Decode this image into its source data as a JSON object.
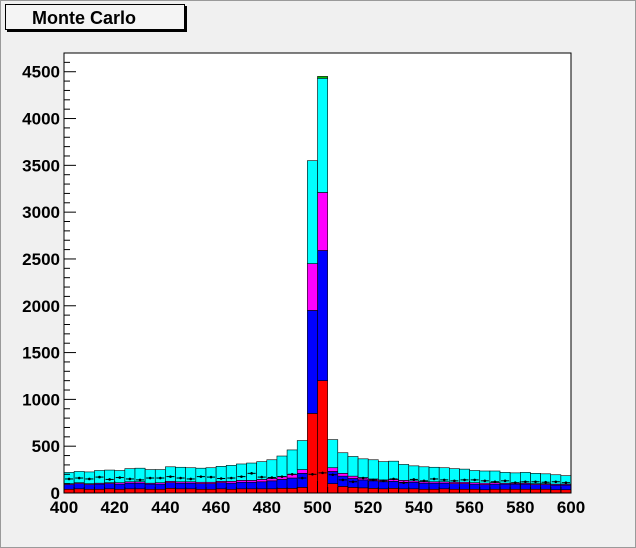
{
  "title": "Monte Carlo",
  "chart_data": {
    "type": "bar",
    "stacked": true,
    "title": "Monte Carlo",
    "xlabel": "",
    "ylabel": "",
    "xlim": [
      400,
      600
    ],
    "ylim": [
      0,
      4700
    ],
    "grid": false,
    "x_ticks": [
      400,
      420,
      440,
      460,
      480,
      500,
      520,
      540,
      560,
      580,
      600
    ],
    "y_ticks": [
      0,
      500,
      1000,
      1500,
      2000,
      2500,
      3000,
      3500,
      4000,
      4500
    ],
    "bin_edges_start": 400,
    "bin_width": 4,
    "colors": {
      "red": "#ff0000",
      "blue": "#0000ff",
      "magenta": "#ff00ff",
      "cyan": "#00ffff",
      "green": "#00c000",
      "points": "#000000"
    },
    "series": [
      {
        "color": "red",
        "values": [
          40,
          45,
          40,
          40,
          45,
          40,
          45,
          45,
          40,
          40,
          50,
          45,
          45,
          40,
          40,
          45,
          40,
          45,
          45,
          45,
          45,
          50,
          50,
          60,
          850,
          1200,
          100,
          70,
          60,
          55,
          50,
          45,
          50,
          45,
          45,
          40,
          40,
          45,
          40,
          40,
          40,
          35,
          40,
          40,
          40,
          40,
          40,
          40,
          35,
          35
        ]
      },
      {
        "color": "blue",
        "values": [
          50,
          55,
          50,
          55,
          55,
          55,
          60,
          60,
          55,
          55,
          60,
          60,
          60,
          60,
          60,
          65,
          65,
          70,
          70,
          75,
          85,
          95,
          110,
          150,
          1100,
          1390,
          130,
          110,
          95,
          85,
          80,
          75,
          75,
          70,
          70,
          65,
          65,
          60,
          60,
          60,
          55,
          55,
          55,
          55,
          55,
          55,
          50,
          50,
          50,
          50
        ]
      },
      {
        "color": "magenta",
        "values": [
          10,
          10,
          10,
          10,
          10,
          15,
          15,
          15,
          10,
          15,
          15,
          15,
          15,
          15,
          15,
          15,
          20,
          20,
          20,
          25,
          25,
          30,
          40,
          40,
          500,
          620,
          40,
          30,
          25,
          25,
          20,
          20,
          20,
          20,
          15,
          15,
          15,
          15,
          15,
          15,
          15,
          15,
          15,
          10,
          10,
          10,
          10,
          10,
          10,
          10
        ]
      },
      {
        "color": "cyan",
        "values": [
          120,
          120,
          125,
          135,
          135,
          130,
          140,
          145,
          145,
          140,
          155,
          155,
          150,
          150,
          155,
          160,
          170,
          175,
          185,
          190,
          200,
          220,
          260,
          310,
          1100,
          1220,
          300,
          220,
          210,
          200,
          205,
          195,
          195,
          170,
          160,
          160,
          155,
          150,
          145,
          140,
          130,
          130,
          125,
          115,
          110,
          115,
          110,
          105,
          100,
          90
        ]
      },
      {
        "color": "green",
        "values": [
          0,
          0,
          0,
          0,
          0,
          0,
          0,
          0,
          0,
          0,
          0,
          0,
          0,
          0,
          0,
          0,
          0,
          0,
          0,
          0,
          0,
          0,
          0,
          0,
          0,
          20,
          0,
          0,
          0,
          0,
          0,
          0,
          0,
          0,
          0,
          0,
          0,
          0,
          0,
          0,
          0,
          0,
          0,
          0,
          0,
          0,
          0,
          0,
          0,
          0
        ]
      }
    ],
    "points": {
      "values": [
        150,
        160,
        150,
        170,
        145,
        165,
        150,
        140,
        160,
        160,
        175,
        160,
        150,
        175,
        170,
        155,
        160,
        175,
        210,
        170,
        165,
        175,
        200,
        160,
        200,
        215,
        195,
        140,
        120,
        160,
        140,
        130,
        150,
        110,
        145,
        130,
        150,
        140,
        130,
        140,
        140,
        130,
        120,
        130,
        110,
        120,
        120,
        115,
        120,
        110
      ]
    }
  }
}
